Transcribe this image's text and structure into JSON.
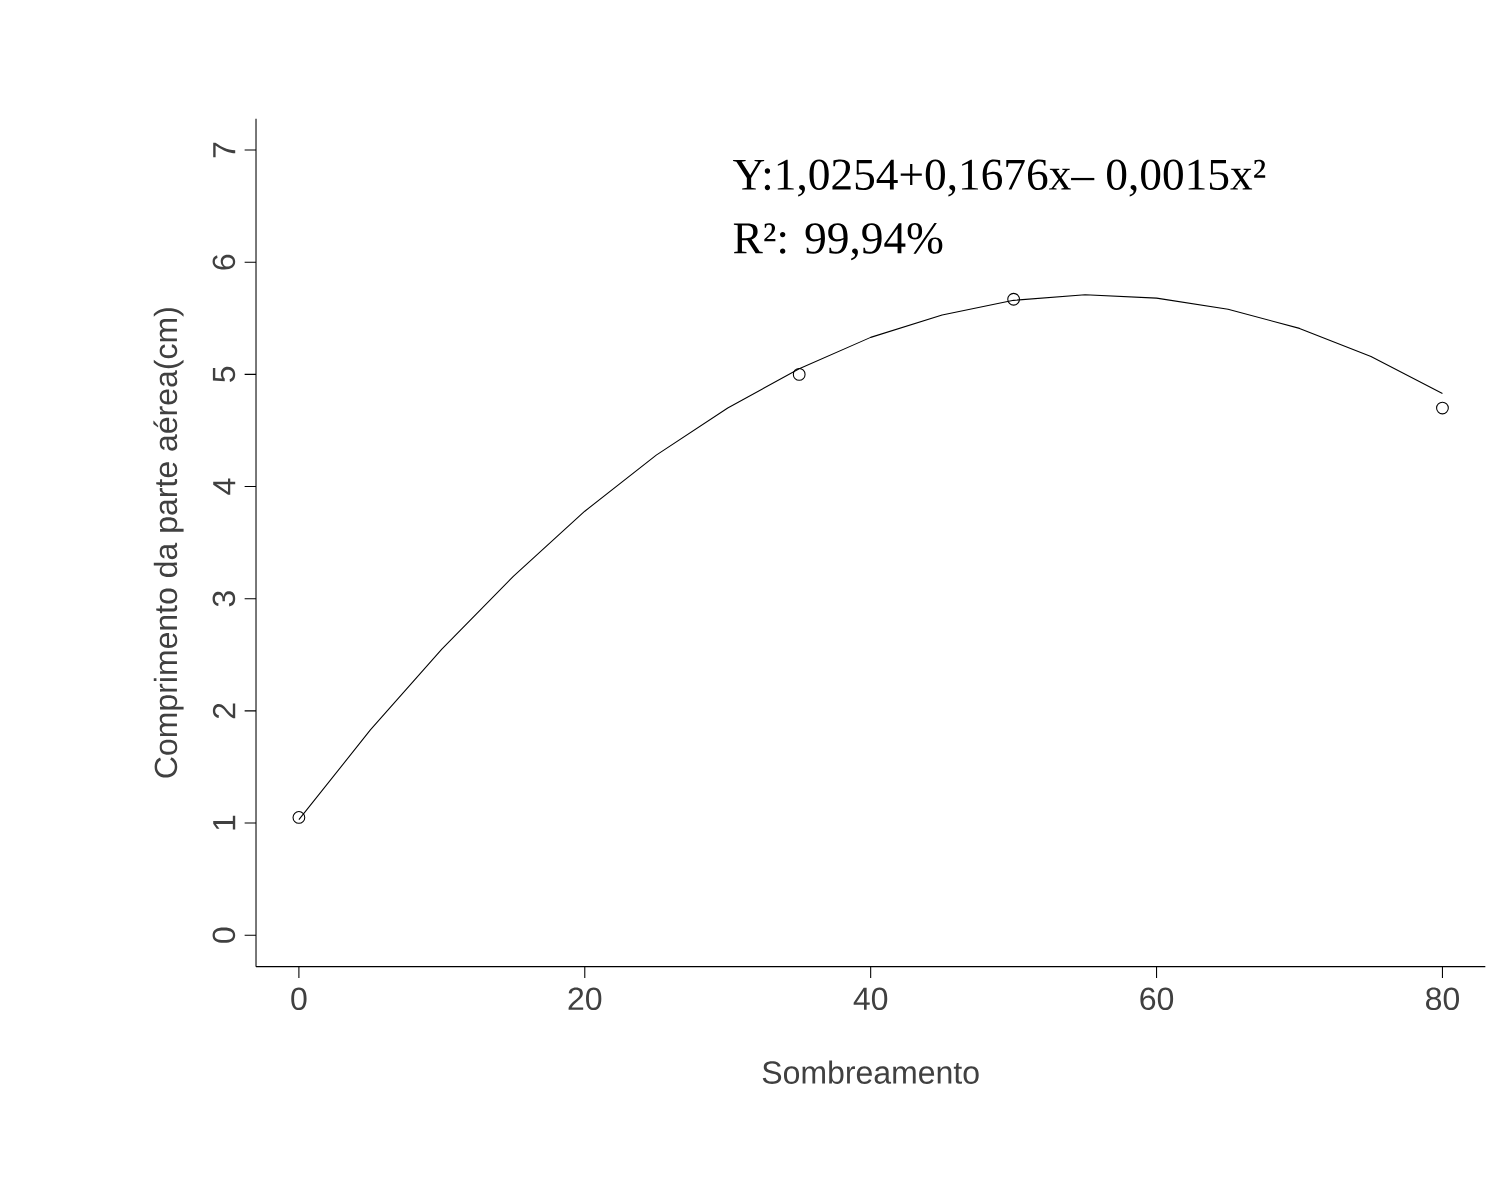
{
  "chart_data": {
    "type": "scatter",
    "xlabel": "Sombreamento",
    "ylabel": "Comprimento da parte aérea(cm)",
    "annotations": [
      "Y:1,0254+0,1676x– 0,0015x²",
      "R²: 99,94%"
    ],
    "xlim": [
      -3,
      83
    ],
    "ylim": [
      -0.28,
      7.28
    ],
    "xticks": [
      0,
      20,
      40,
      60,
      80
    ],
    "yticks": [
      0,
      1,
      2,
      3,
      4,
      5,
      6,
      7
    ],
    "grid": false,
    "series": [
      {
        "marker": "circle",
        "color": "#000000",
        "x": [
          0,
          35,
          50,
          80
        ],
        "values": [
          1.05,
          5.0,
          5.67,
          4.7
        ]
      },
      {
        "type": "line",
        "marker": "none",
        "line_style": "solid",
        "color": "#000000",
        "x": [
          0,
          5,
          10,
          15,
          20,
          25,
          30,
          35,
          40,
          45,
          50,
          55,
          60,
          65,
          70,
          75,
          80
        ],
        "values": [
          1.03,
          1.83,
          2.55,
          3.2,
          3.78,
          4.28,
          4.7,
          5.05,
          5.33,
          5.53,
          5.66,
          5.71,
          5.68,
          5.58,
          5.41,
          5.16,
          4.83
        ]
      }
    ]
  }
}
